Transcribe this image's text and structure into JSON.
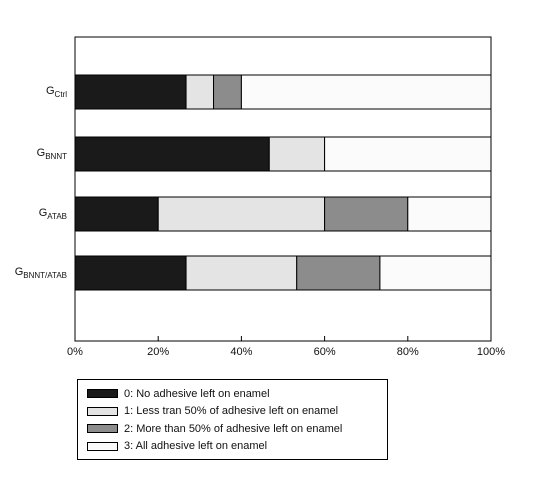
{
  "chart_data": {
    "type": "bar",
    "orientation": "horizontal",
    "stacked": true,
    "percent": true,
    "categories": [
      {
        "base": "G",
        "sub": "Ctrl"
      },
      {
        "base": "G",
        "sub": "BNNT"
      },
      {
        "base": "G",
        "sub": "ATAB"
      },
      {
        "base": "G",
        "sub": "BNNT/ATAB"
      }
    ],
    "series": [
      {
        "name": "0: No adhesive left on enamel",
        "color": "#1a1a1a",
        "values": [
          26.7,
          46.7,
          20.0,
          26.7
        ]
      },
      {
        "name": "1: Less tran 50% of adhesive left on enamel",
        "color": "#e4e4e4",
        "values": [
          6.6,
          13.3,
          40.0,
          26.6
        ]
      },
      {
        "name": "2: More than 50% of adhesive left on enamel",
        "color": "#8c8c8c",
        "values": [
          6.7,
          0.0,
          20.0,
          20.0
        ]
      },
      {
        "name": "3: All adhesive left on enamel",
        "color": "#fbfbfb",
        "values": [
          60.0,
          40.0,
          20.0,
          26.7
        ]
      }
    ],
    "xlim": [
      0,
      100
    ],
    "x_ticks": [
      "0%",
      "20%",
      "40%",
      "60%",
      "80%",
      "100%"
    ],
    "grid": false,
    "legend_position": "bottom-left"
  }
}
